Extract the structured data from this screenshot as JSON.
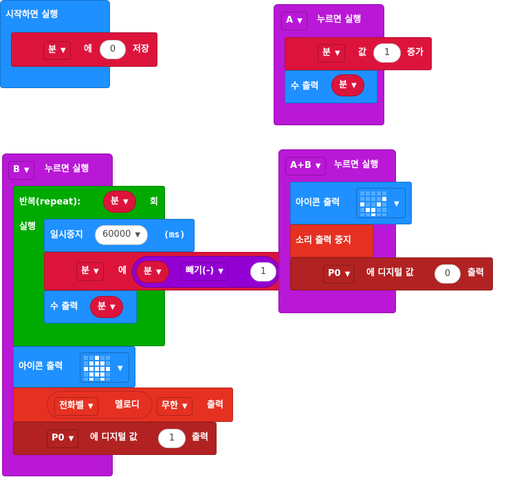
{
  "on_start": {
    "hat_label": "시작하면 실행",
    "set_var": "분",
    "set_to": "에",
    "set_value": "0",
    "set_suffix": "저장"
  },
  "button_a": {
    "button": "A",
    "hat_label": "누르면 실행",
    "change_var": "분",
    "change_by": "값",
    "change_value": "1",
    "change_suffix": "증가",
    "show_number": "수 출력",
    "show_var": "분"
  },
  "button_b": {
    "button": "B",
    "hat_label": "누르면 실행",
    "repeat_label": "반복(repeat):",
    "repeat_var": "분",
    "repeat_suffix": "회",
    "do_label": "실행",
    "pause_label": "일시중지",
    "pause_value": "60000",
    "pause_unit": "(ms)",
    "set_var": "분",
    "set_to": "에",
    "math_var": "분",
    "math_op": "빼기(-)",
    "math_value": "1",
    "show_number": "수 출력",
    "show_var": "분",
    "show_icon": "아이콘 출력",
    "melody_name": "전화벨",
    "melody_label": "멜로디",
    "melody_repeat": "무한",
    "melody_suffix": "출력",
    "pin": "P0",
    "pin_to": "에 디지털 값",
    "pin_value": "1",
    "pin_suffix": "출력"
  },
  "button_ab": {
    "button": "A+B",
    "hat_label": "누르면 실행",
    "show_icon": "아이콘 출력",
    "stop_sound": "소리 출력 중지",
    "pin": "P0",
    "pin_to": "에 디지털 값",
    "pin_value": "0",
    "pin_suffix": "출력"
  },
  "colors": {
    "events": "#b918d6",
    "basic": "#1e90ff",
    "variables": "#dc143c",
    "loops": "#00aa00",
    "math": "#9400d3",
    "music": "#e63022",
    "pins": "#b22222"
  },
  "icons": {
    "dropdown": "chevron-down-icon",
    "led_icon": "led-matrix-icon"
  }
}
